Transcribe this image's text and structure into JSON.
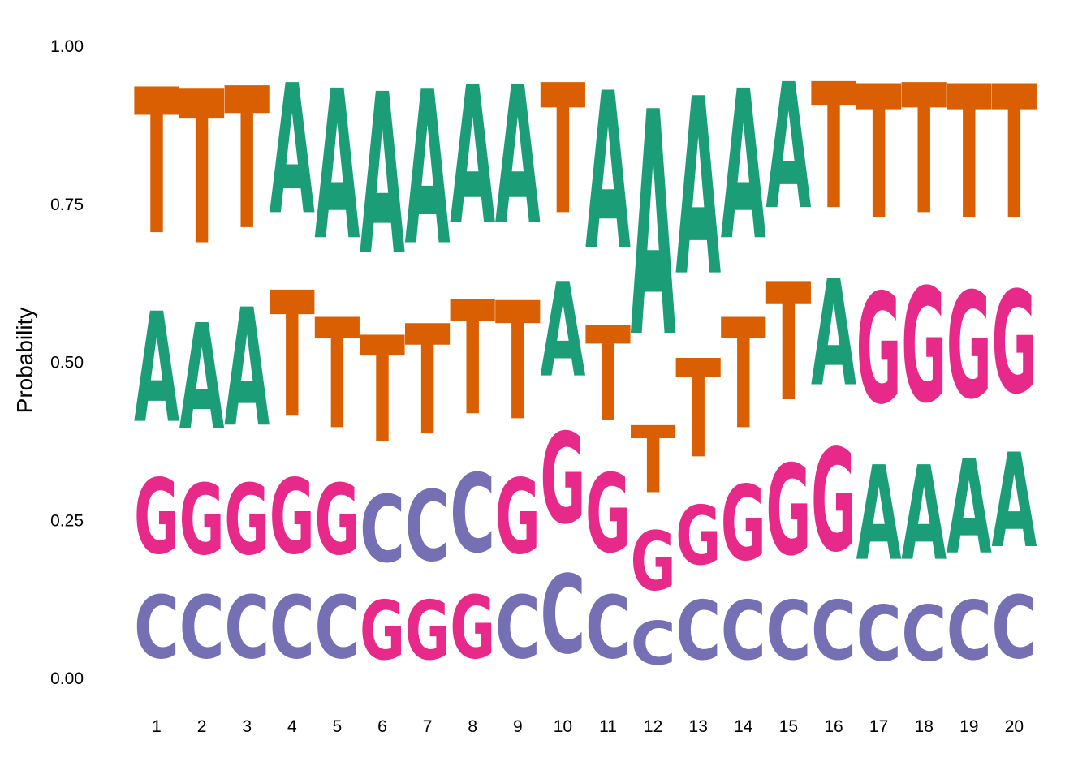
{
  "chart_data": {
    "type": "sequence-logo",
    "title": "",
    "xlabel": "",
    "ylabel": "Probability",
    "ylim": [
      0,
      1
    ],
    "yticks": [
      "0.00",
      "0.25",
      "0.50",
      "0.75",
      "1.00"
    ],
    "grid": false,
    "colors": {
      "A": "#1b9e77",
      "C": "#7570b3",
      "G": "#e7298a",
      "T": "#d95f02"
    },
    "positions": [
      {
        "pos": "1",
        "stack": [
          {
            "letter": "C",
            "p": 0.16
          },
          {
            "letter": "G",
            "p": 0.19
          },
          {
            "letter": "A",
            "p": 0.28
          },
          {
            "letter": "T",
            "p": 0.37
          }
        ]
      },
      {
        "pos": "2",
        "stack": [
          {
            "letter": "C",
            "p": 0.16
          },
          {
            "letter": "G",
            "p": 0.18
          },
          {
            "letter": "A",
            "p": 0.27
          },
          {
            "letter": "T",
            "p": 0.39
          }
        ]
      },
      {
        "pos": "3",
        "stack": [
          {
            "letter": "C",
            "p": 0.16
          },
          {
            "letter": "G",
            "p": 0.18
          },
          {
            "letter": "A",
            "p": 0.3
          },
          {
            "letter": "T",
            "p": 0.36
          }
        ]
      },
      {
        "pos": "4",
        "stack": [
          {
            "letter": "C",
            "p": 0.16
          },
          {
            "letter": "G",
            "p": 0.19
          },
          {
            "letter": "T",
            "p": 0.32
          },
          {
            "letter": "A",
            "p": 0.33
          }
        ]
      },
      {
        "pos": "5",
        "stack": [
          {
            "letter": "C",
            "p": 0.16
          },
          {
            "letter": "G",
            "p": 0.18
          },
          {
            "letter": "T",
            "p": 0.28
          },
          {
            "letter": "A",
            "p": 0.38
          }
        ]
      },
      {
        "pos": "6",
        "stack": [
          {
            "letter": "G",
            "p": 0.15
          },
          {
            "letter": "C",
            "p": 0.17
          },
          {
            "letter": "T",
            "p": 0.27
          },
          {
            "letter": "A",
            "p": 0.41
          }
        ]
      },
      {
        "pos": "7",
        "stack": [
          {
            "letter": "G",
            "p": 0.15
          },
          {
            "letter": "C",
            "p": 0.18
          },
          {
            "letter": "T",
            "p": 0.28
          },
          {
            "letter": "A",
            "p": 0.39
          }
        ]
      },
      {
        "pos": "8",
        "stack": [
          {
            "letter": "G",
            "p": 0.16
          },
          {
            "letter": "C",
            "p": 0.2
          },
          {
            "letter": "T",
            "p": 0.29
          },
          {
            "letter": "A",
            "p": 0.35
          }
        ]
      },
      {
        "pos": "9",
        "stack": [
          {
            "letter": "C",
            "p": 0.16
          },
          {
            "letter": "G",
            "p": 0.19
          },
          {
            "letter": "T",
            "p": 0.3
          },
          {
            "letter": "A",
            "p": 0.35
          }
        ]
      },
      {
        "pos": "10",
        "stack": [
          {
            "letter": "C",
            "p": 0.2
          },
          {
            "letter": "G",
            "p": 0.23
          },
          {
            "letter": "A",
            "p": 0.24
          },
          {
            "letter": "T",
            "p": 0.33
          }
        ]
      },
      {
        "pos": "11",
        "stack": [
          {
            "letter": "C",
            "p": 0.16
          },
          {
            "letter": "G",
            "p": 0.2
          },
          {
            "letter": "T",
            "p": 0.24
          },
          {
            "letter": "A",
            "p": 0.4
          }
        ]
      },
      {
        "pos": "12",
        "stack": [
          {
            "letter": "C",
            "p": 0.11
          },
          {
            "letter": "G",
            "p": 0.15
          },
          {
            "letter": "T",
            "p": 0.17
          },
          {
            "letter": "A",
            "p": 0.57
          }
        ]
      },
      {
        "pos": "13",
        "stack": [
          {
            "letter": "C",
            "p": 0.15
          },
          {
            "letter": "G",
            "p": 0.15
          },
          {
            "letter": "T",
            "p": 0.25
          },
          {
            "letter": "A",
            "p": 0.45
          }
        ]
      },
      {
        "pos": "14",
        "stack": [
          {
            "letter": "C",
            "p": 0.15
          },
          {
            "letter": "G",
            "p": 0.19
          },
          {
            "letter": "T",
            "p": 0.28
          },
          {
            "letter": "A",
            "p": 0.38
          }
        ]
      },
      {
        "pos": "15",
        "stack": [
          {
            "letter": "C",
            "p": 0.15
          },
          {
            "letter": "G",
            "p": 0.23
          },
          {
            "letter": "T",
            "p": 0.3
          },
          {
            "letter": "A",
            "p": 0.32
          }
        ]
      },
      {
        "pos": "16",
        "stack": [
          {
            "letter": "C",
            "p": 0.15
          },
          {
            "letter": "G",
            "p": 0.26
          },
          {
            "letter": "A",
            "p": 0.27
          },
          {
            "letter": "T",
            "p": 0.32
          }
        ]
      },
      {
        "pos": "17",
        "stack": [
          {
            "letter": "C",
            "p": 0.14
          },
          {
            "letter": "A",
            "p": 0.24
          },
          {
            "letter": "G",
            "p": 0.28
          },
          {
            "letter": "T",
            "p": 0.34
          }
        ]
      },
      {
        "pos": "18",
        "stack": [
          {
            "letter": "C",
            "p": 0.14
          },
          {
            "letter": "A",
            "p": 0.24
          },
          {
            "letter": "G",
            "p": 0.29
          },
          {
            "letter": "T",
            "p": 0.33
          }
        ]
      },
      {
        "pos": "19",
        "stack": [
          {
            "letter": "C",
            "p": 0.15
          },
          {
            "letter": "A",
            "p": 0.24
          },
          {
            "letter": "G",
            "p": 0.27
          },
          {
            "letter": "T",
            "p": 0.34
          }
        ]
      },
      {
        "pos": "20",
        "stack": [
          {
            "letter": "C",
            "p": 0.16
          },
          {
            "letter": "A",
            "p": 0.24
          },
          {
            "letter": "G",
            "p": 0.26
          },
          {
            "letter": "T",
            "p": 0.34
          }
        ]
      }
    ]
  }
}
